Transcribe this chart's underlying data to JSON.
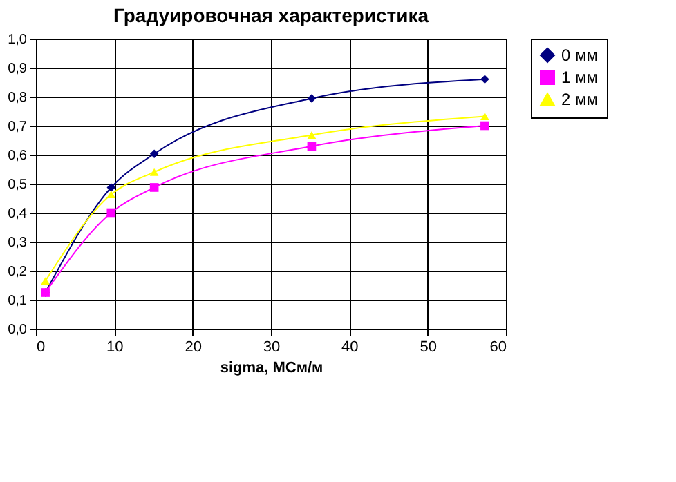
{
  "chart_data": {
    "type": "line",
    "title": "Градуировочная характеристика",
    "xlabel": "sigma, МСм/м",
    "xlim": [
      0,
      60
    ],
    "xticks": [
      0,
      10,
      20,
      30,
      40,
      50,
      60
    ],
    "ylim": [
      0,
      1
    ],
    "yticks": [
      {
        "value": 0,
        "label": "0,0"
      },
      {
        "value": 0.1,
        "label": "0,1"
      },
      {
        "value": 0.2,
        "label": "0,2"
      },
      {
        "value": 0.3,
        "label": "0,3"
      },
      {
        "value": 0.4,
        "label": "0,4"
      },
      {
        "value": 0.5,
        "label": "0,5"
      },
      {
        "value": 0.6,
        "label": "0,6"
      },
      {
        "value": 0.7,
        "label": "0,7"
      },
      {
        "value": 0.8,
        "label": "0,8"
      },
      {
        "value": 0.9,
        "label": "0,9"
      },
      {
        "value": 1,
        "label": "1,0"
      }
    ],
    "grid": true,
    "legend": "right",
    "line_style": "solid",
    "series": [
      {
        "name": "0 мм",
        "color": "#000080",
        "marker": "diamond",
        "x": [
          1.2,
          9.6,
          15.1,
          35.2,
          57.3
        ],
        "values": [
          0.125,
          0.487,
          0.603,
          0.794,
          0.86
        ]
      },
      {
        "name": "1 мм",
        "color": "#ff00ff",
        "marker": "square",
        "x": [
          1.2,
          9.6,
          15.1,
          35.2,
          57.3
        ],
        "values": [
          0.125,
          0.4,
          0.487,
          0.629,
          0.7
        ]
      },
      {
        "name": "2 мм",
        "color": "#ffff00",
        "marker": "triangle",
        "x": [
          1.2,
          9.6,
          15.1,
          35.2,
          57.3
        ],
        "values": [
          0.165,
          0.463,
          0.54,
          0.668,
          0.732
        ]
      }
    ]
  }
}
